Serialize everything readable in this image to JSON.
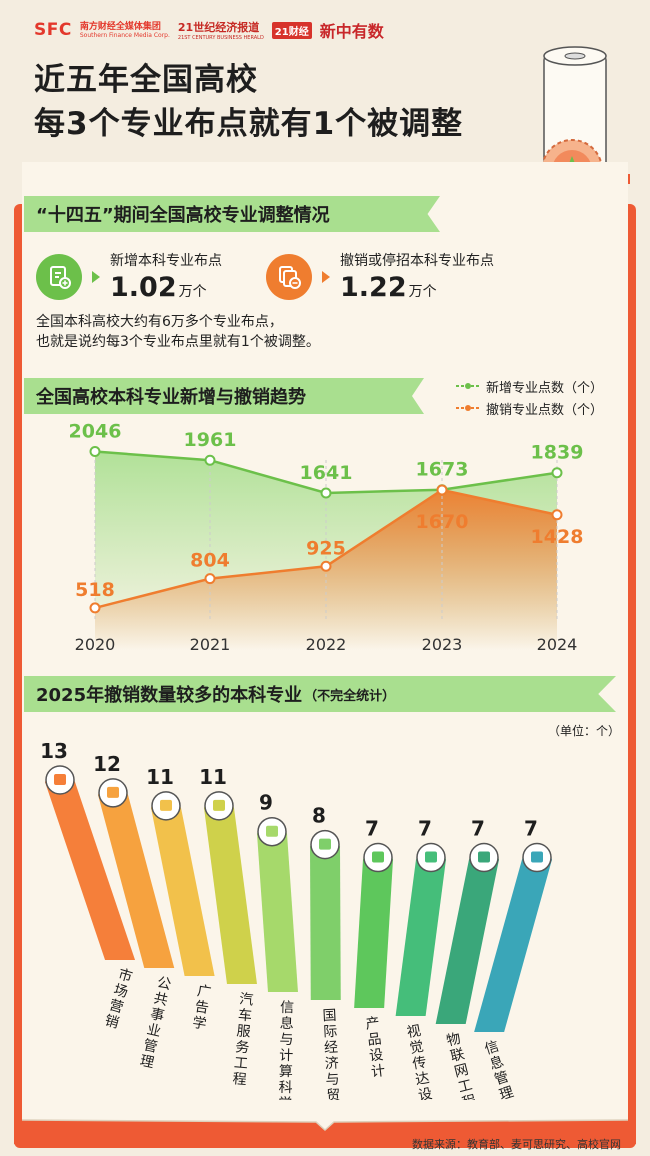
{
  "header": {
    "logo_sfc": "SFC",
    "logo_sfc_cn": "南方财经全媒体集团",
    "logo_sfc_en": "Southern Finance Media Corp.",
    "logo_21": "21世纪经济报道",
    "logo_21_en": "21ST CENTURY BUSINESS HERALD",
    "logo_21cj": "21财经",
    "logo_xin": "新中有数",
    "title_line1": "近五年全国高校",
    "title_line2": "每3个专业布点就有1个被调整"
  },
  "section1": {
    "heading": "“十四五”期间全国高校专业调整情况",
    "stat_add": {
      "label": "新增本科专业布点",
      "value": "1.02",
      "unit": "万个",
      "color": "#6cc04a"
    },
    "stat_remove": {
      "label": "撤销或停招本科专业布点",
      "value": "1.22",
      "unit": "万个",
      "color": "#ef7d2f"
    },
    "desc_line1": "全国本科高校大约有6万多个专业布点，",
    "desc_line2": "也就是说约每3个专业布点里就有1个被调整。"
  },
  "section2": {
    "heading": "全国高校本科专业新增与撤销趋势",
    "legend_add": "新增专业点数（个）",
    "legend_remove": "撤销专业点数（个）"
  },
  "section3": {
    "heading": "2025年撤销数量较多的本科专业",
    "heading_note": "（不完全统计）",
    "unit": "（单位：个）"
  },
  "source": "数据来源：教育部、麦可思研究、高校官网",
  "chart_data": [
    {
      "type": "line",
      "x": [
        "2020",
        "2021",
        "2022",
        "2023",
        "2024"
      ],
      "series": [
        {
          "name": "新增专业点数（个）",
          "values": [
            2046,
            1961,
            1641,
            1673,
            1839
          ],
          "color": "#6cc04a"
        },
        {
          "name": "撤销专业点数（个）",
          "values": [
            518,
            804,
            925,
            1670,
            1428
          ],
          "color": "#ef7d2f"
        }
      ],
      "ylim": [
        400,
        2100
      ],
      "grid": false,
      "legend": "top-right"
    },
    {
      "type": "bar",
      "categories": [
        "市场营销",
        "公共事业管理",
        "广告学",
        "汽车服务工程",
        "信息与计算科学",
        "国际经济与贸易",
        "产品设计",
        "视觉传达设计",
        "物联网工程",
        "信息管理与信息系统"
      ],
      "values": [
        13,
        12,
        11,
        11,
        9,
        8,
        7,
        7,
        7,
        7
      ],
      "colors": [
        "#f57f3a",
        "#f6a23f",
        "#f2c14b",
        "#cfd14b",
        "#a6d96b",
        "#7fcf6a",
        "#5ec75c",
        "#45be7a",
        "#3aa77a",
        "#3aa6b8"
      ],
      "icons": [
        "bar-chart-icon",
        "document-icon",
        "billboard-icon",
        "car-icon",
        "network-icon",
        "ship-icon",
        "design-icon",
        "bulb-icon",
        "iot-icon",
        "dashboard-icon"
      ]
    }
  ]
}
